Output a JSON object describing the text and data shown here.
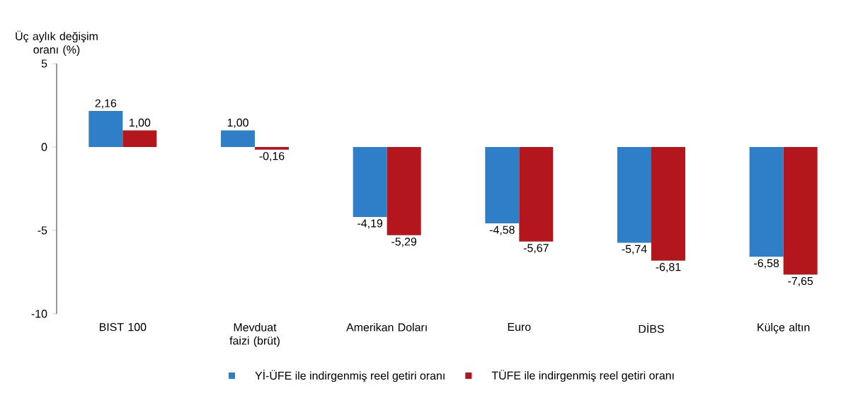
{
  "chart_data": {
    "type": "bar",
    "ylabel": "Üç aylık değişim oranı (%)",
    "categories": [
      "BIST 100",
      "Mevduat faizi (brüt)",
      "Amerikan Doları",
      "Euro",
      "DİBS",
      "Külçe altın"
    ],
    "series": [
      {
        "name": "Yİ-ÜFE ile indirgenmiş reel getiri oranı",
        "color": "#2e7ec8",
        "values": [
          2.16,
          1.0,
          -4.19,
          -4.58,
          -5.74,
          -6.58
        ],
        "value_labels": [
          "2,16",
          "1,00",
          "-4,19",
          "-4,58",
          "-5,74",
          "-6,58"
        ]
      },
      {
        "name": "TÜFE ile indirgenmiş reel getiri oranı",
        "color": "#b3161d",
        "values": [
          1.0,
          -0.16,
          -5.29,
          -5.67,
          -6.81,
          -7.65
        ],
        "value_labels": [
          "1,00",
          "-0,16",
          "-5,29",
          "-5,67",
          "-6,81",
          "-7,65"
        ]
      }
    ],
    "ylim": [
      -10,
      5
    ],
    "yticks": [
      -10,
      -5,
      0,
      5
    ],
    "grid": false,
    "legend": "bottom"
  }
}
